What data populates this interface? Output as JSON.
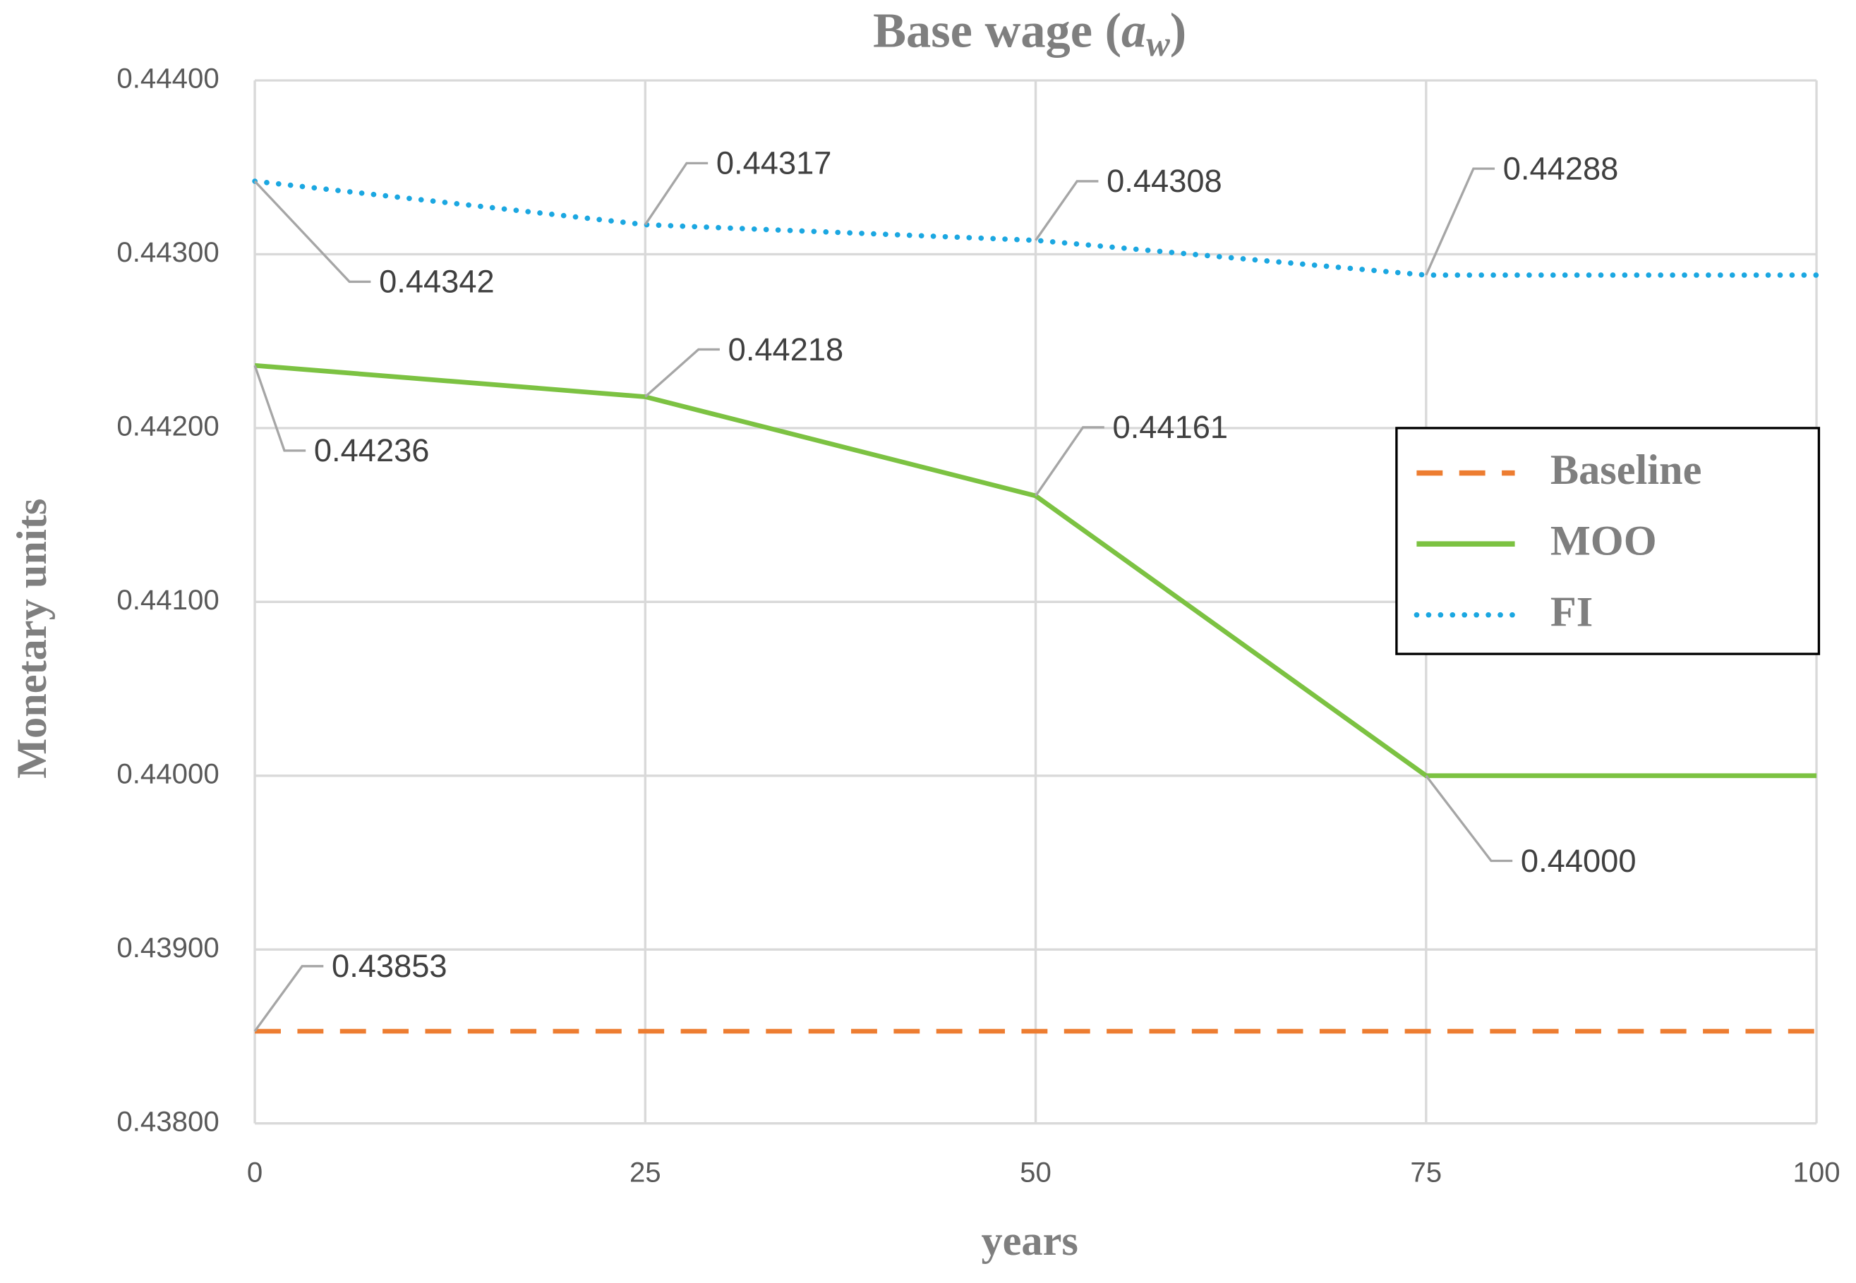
{
  "chart_data": {
    "type": "line",
    "title": [
      "Base wage (",
      "a",
      "w",
      ")"
    ],
    "x_label": "years",
    "y_label": "Monetary units",
    "x": [
      0,
      25,
      50,
      75,
      100
    ],
    "xlim": [
      0,
      100
    ],
    "xticks": [
      0,
      25,
      50,
      75,
      100
    ],
    "ylim": [
      0.438,
      0.444
    ],
    "yticks": [
      {
        "value": 0.438,
        "label": "0.43800"
      },
      {
        "value": 0.439,
        "label": "0.43900"
      },
      {
        "value": 0.44,
        "label": "0.44000"
      },
      {
        "value": 0.441,
        "label": "0.44100"
      },
      {
        "value": 0.442,
        "label": "0.44200"
      },
      {
        "value": 0.443,
        "label": "0.44300"
      },
      {
        "value": 0.444,
        "label": "0.44400"
      }
    ],
    "grid": true,
    "legend": "right",
    "series": [
      {
        "name": "Baseline",
        "color": "#ed7d31",
        "style": "dashed",
        "values": [
          0.43853,
          0.43853,
          0.43853,
          0.43853,
          0.43853
        ],
        "value_labels": [
          "0.43853",
          null,
          null,
          null,
          null
        ]
      },
      {
        "name": "MOO",
        "color": "#7cc242",
        "style": "solid",
        "values": [
          0.44236,
          0.44218,
          0.44161,
          0.44,
          0.44
        ],
        "value_labels": [
          "0.44236",
          "0.44218",
          "0.44161",
          "0.44000",
          null
        ]
      },
      {
        "name": "FI",
        "color": "#1ba7e1",
        "style": "dotted",
        "values": [
          0.44342,
          0.44317,
          0.44308,
          0.44288,
          0.44288
        ],
        "value_labels": [
          "0.44342",
          "0.44317",
          "0.44308",
          "0.44288",
          null
        ]
      }
    ]
  }
}
